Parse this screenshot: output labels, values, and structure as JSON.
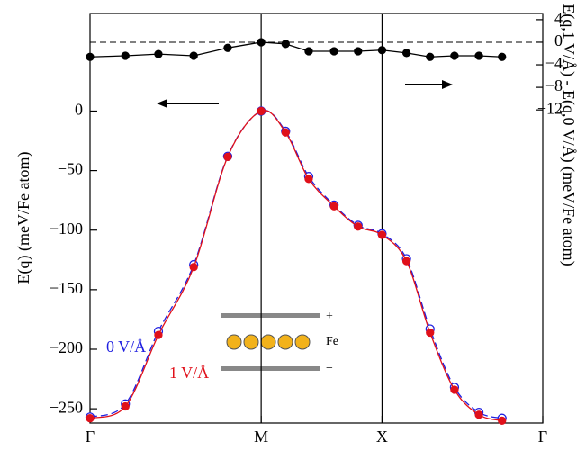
{
  "chart_data": {
    "type": "line",
    "x": [
      0,
      0.078,
      0.151,
      0.229,
      0.304,
      0.378,
      0.432,
      0.483,
      0.539,
      0.592,
      0.645,
      0.699,
      0.751,
      0.805,
      0.859,
      0.91
    ],
    "xlim": [
      0,
      1
    ],
    "xticks": [
      {
        "value": 0,
        "label": "Γ"
      },
      {
        "value": 0.378,
        "label": "M"
      },
      {
        "value": 0.645,
        "label": "X"
      },
      {
        "value": 1,
        "label": "Γ"
      }
    ],
    "ylim": [
      -262,
      82
    ],
    "yticks": [
      {
        "value": 0,
        "label": "0"
      },
      {
        "value": -50,
        "label": "−50"
      },
      {
        "value": -100,
        "label": "−100"
      },
      {
        "value": -150,
        "label": "−150"
      },
      {
        "value": -200,
        "label": "−200"
      },
      {
        "value": -250,
        "label": "−250"
      }
    ],
    "y2lim": [
      -67.5,
      5.1
    ],
    "y2ticks": [
      {
        "value": 4,
        "label": "4"
      },
      {
        "value": 0,
        "label": "0"
      },
      {
        "value": -4,
        "label": "−4"
      },
      {
        "value": -8,
        "label": "−8"
      },
      {
        "value": -12,
        "label": "−12"
      }
    ],
    "ylabel": "E(q) (meV/Fe atom)",
    "y2label": "E(q,1 V/Å) - E(q,0 V/Å) (meV/Fe atom)",
    "series": [
      {
        "name": "0 V/Å",
        "color": "#1f1fe0",
        "style": "dashed",
        "marker": "open",
        "values": [
          -257,
          -246,
          -185,
          -129,
          -38,
          0,
          -17,
          -55,
          -79,
          -96,
          -103,
          -124,
          -183,
          -232,
          -253,
          -258
        ]
      },
      {
        "name": "1 V/Å",
        "color": "#e0101a",
        "style": "solid",
        "marker": "filled",
        "values": [
          -258,
          -248,
          -188,
          -131,
          -38.5,
          0,
          -18,
          -57,
          -80,
          -97,
          -104,
          -126,
          -186,
          -234,
          -255,
          -260
        ]
      },
      {
        "color": "#000000",
        "style": "solid",
        "marker": "filled",
        "axis": "y2",
        "values": [
          -2.6,
          -2.4,
          -2.1,
          -2.4,
          -1.0,
          0,
          -0.3,
          -1.6,
          -1.6,
          -1.6,
          -1.4,
          -1.9,
          -2.6,
          -2.4,
          -2.4,
          -2.6
        ]
      }
    ],
    "inset_labels": [
      "+",
      "Fe",
      "−"
    ]
  }
}
